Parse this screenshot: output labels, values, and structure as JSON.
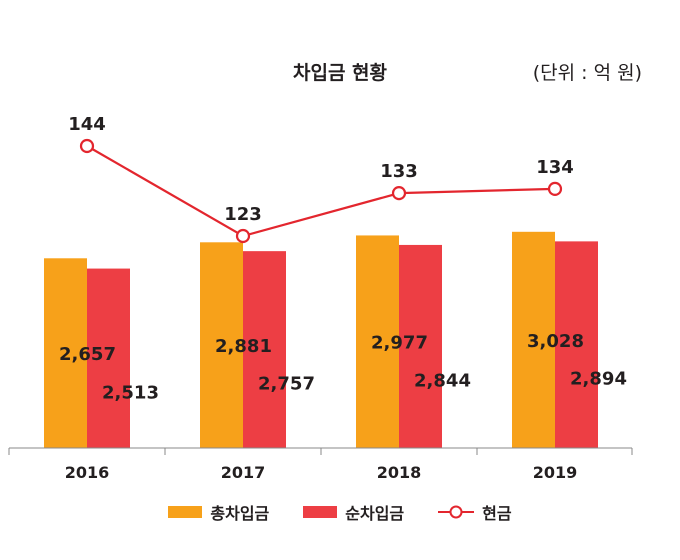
{
  "chart_data": {
    "type": "bar",
    "title": "차입금 현황",
    "unit": "(단위 : 억 원)",
    "categories": [
      "2016",
      "2017",
      "2018",
      "2019"
    ],
    "series": [
      {
        "name": "총차입금",
        "type": "bar",
        "color": "#f7a11a",
        "values": [
          2657,
          2881,
          2977,
          3028
        ],
        "labels": [
          "2,657",
          "2,881",
          "2,977",
          "3,028"
        ]
      },
      {
        "name": "순차입금",
        "type": "bar",
        "color": "#ed3e44",
        "values": [
          2513,
          2757,
          2844,
          2894
        ],
        "labels": [
          "2,513",
          "2,757",
          "2,844",
          "2,894"
        ]
      },
      {
        "name": "현금",
        "type": "line",
        "color": "#e3262e",
        "values": [
          144,
          123,
          133,
          134
        ],
        "labels": [
          "144",
          "123",
          "133",
          "134"
        ]
      }
    ],
    "legend_position": "bottom",
    "grid": false
  }
}
